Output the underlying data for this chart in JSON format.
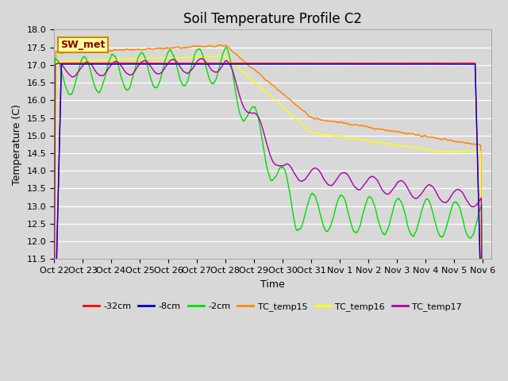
{
  "title": "Soil Temperature Profile C2",
  "xlabel": "Time",
  "ylabel": "Temperature (C)",
  "ylim": [
    11.5,
    18.0
  ],
  "yticks": [
    11.5,
    12.0,
    12.5,
    13.0,
    13.5,
    14.0,
    14.5,
    15.0,
    15.5,
    16.0,
    16.5,
    17.0,
    17.5,
    18.0
  ],
  "xtick_labels": [
    "Oct 22",
    "Oct 23",
    "Oct 24",
    "Oct 25",
    "Oct 26",
    "Oct 27",
    "Oct 28",
    "Oct 29",
    "Oct 30",
    "Oct 31",
    "Nov 1",
    "Nov 2",
    "Nov 3",
    "Nov 4",
    "Nov 5",
    "Nov 6"
  ],
  "colors": {
    "neg32cm": "#ff0000",
    "neg8cm": "#0000cc",
    "neg2cm": "#00dd00",
    "TC_temp15": "#ff8800",
    "TC_temp16": "#ffff00",
    "TC_temp17": "#aa00aa"
  },
  "legend_label": "SW_met",
  "legend_fg": "#8b0000",
  "legend_bg": "#ffff99",
  "legend_border": "#cc8800",
  "plot_bg": "#d8d8d8",
  "fig_bg": "#d8d8d8",
  "grid_color": "#ffffff",
  "title_fontsize": 12,
  "label_fontsize": 9,
  "tick_fontsize": 8
}
